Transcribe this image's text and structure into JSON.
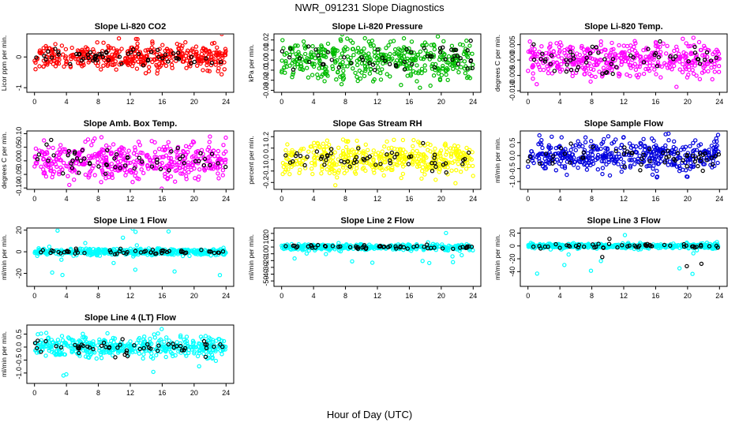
{
  "figure": {
    "title": "NWR_091231  Slope Diagnostics",
    "xlabel": "Hour of Day (UTC)"
  },
  "chart_data": [
    {
      "type": "scatter",
      "title": "Slope Li-820 CO2",
      "ylabel": "Licor ppm per min.",
      "xlim": [
        0,
        24
      ],
      "xticks": [
        0,
        4,
        8,
        12,
        16,
        20,
        24
      ],
      "ylim": [
        -1.15,
        0.75
      ],
      "yticks": [
        -1,
        0
      ],
      "ytick_labels": [
        "-1",
        "0"
      ],
      "series": [
        {
          "name": "",
          "color": "#ff0000",
          "spread": 0.2,
          "outlier_spread": 0.55,
          "count": 430
        },
        {
          "name": "",
          "color": "#000000",
          "spread": 0.15,
          "outlier_spread": 0.2,
          "count": 55
        }
      ]
    },
    {
      "type": "scatter",
      "title": "Slope Li-820 Pressure",
      "ylabel": "kPa per min.",
      "xlim": [
        0,
        24
      ],
      "xticks": [
        0,
        4,
        8,
        12,
        16,
        20,
        24
      ],
      "ylim": [
        -0.032,
        0.026
      ],
      "yticks": [
        -0.03,
        -0.02,
        -0.01,
        0,
        0.01,
        0.02
      ],
      "ytick_labels": [
        "-0.03",
        "-0.02",
        "-0.01",
        "0.00",
        "0.01",
        "0.02"
      ],
      "series": [
        {
          "name": "",
          "color": "#00bb00",
          "spread": 0.01,
          "outlier_spread": 0.02,
          "count": 430
        },
        {
          "name": "",
          "color": "#000000",
          "spread": 0.008,
          "outlier_spread": 0.01,
          "count": 55
        }
      ]
    },
    {
      "type": "scatter",
      "title": "Slope Li-820 Temp.",
      "ylabel": "degrees C per min.",
      "xlim": [
        0,
        24
      ],
      "xticks": [
        0,
        4,
        8,
        12,
        16,
        20,
        24
      ],
      "ylim": [
        -0.0105,
        0.0085
      ],
      "yticks": [
        -0.01,
        -0.005,
        0,
        0.005
      ],
      "ytick_labels": [
        "-0.010",
        "-0.005",
        "0.000",
        "0.005"
      ],
      "series": [
        {
          "name": "",
          "color": "#ff00ff",
          "spread": 0.003,
          "outlier_spread": 0.007,
          "count": 430
        },
        {
          "name": "",
          "color": "#000000",
          "spread": 0.0025,
          "outlier_spread": 0.004,
          "count": 55
        }
      ]
    },
    {
      "type": "scatter",
      "title": "Slope Amb. Box Temp.",
      "ylabel": "degrees C per min.",
      "xlim": [
        0,
        24
      ],
      "xticks": [
        0,
        4,
        8,
        12,
        16,
        20,
        24
      ],
      "ylim": [
        -0.105,
        0.11
      ],
      "yticks": [
        -0.1,
        -0.05,
        0,
        0.05,
        0.1
      ],
      "ytick_labels": [
        "-0.10",
        "-0.05",
        "0.00",
        "0.05",
        "0.10"
      ],
      "series": [
        {
          "name": "",
          "color": "#ff00ff",
          "spread": 0.035,
          "outlier_spread": 0.08,
          "count": 430
        },
        {
          "name": "",
          "color": "#000000",
          "spread": 0.03,
          "outlier_spread": 0.04,
          "count": 55
        }
      ]
    },
    {
      "type": "scatter",
      "title": "Slope Gas Stream RH",
      "ylabel": "percent per min.",
      "xlim": [
        0,
        24
      ],
      "xticks": [
        0,
        4,
        8,
        12,
        16,
        20,
        24
      ],
      "ylim": [
        -0.26,
        0.25
      ],
      "yticks": [
        -0.2,
        -0.1,
        0,
        0.1,
        0.2
      ],
      "ytick_labels": [
        "-0.2",
        "-0.1",
        "0.0",
        "0.1",
        "0.2"
      ],
      "series": [
        {
          "name": "",
          "color": "#ffff00",
          "spread": 0.07,
          "outlier_spread": 0.18,
          "count": 430
        },
        {
          "name": "",
          "color": "#000000",
          "spread": 0.05,
          "outlier_spread": 0.09,
          "count": 55
        }
      ]
    },
    {
      "type": "scatter",
      "title": "Slope Sample Flow",
      "ylabel": "ml/min per min.",
      "xlim": [
        0,
        24
      ],
      "xticks": [
        0,
        4,
        8,
        12,
        16,
        20,
        24
      ],
      "ylim": [
        -1.3,
        0.95
      ],
      "yticks": [
        -1,
        -0.5,
        0,
        0.5
      ],
      "ytick_labels": [
        "-1.0",
        "-0.5",
        "0.0",
        "0.5"
      ],
      "series": [
        {
          "name": "",
          "color": "#0000dd",
          "spread": 0.3,
          "outlier_spread": 0.85,
          "count": 430
        },
        {
          "name": "",
          "color": "#000000",
          "spread": 0.25,
          "outlier_spread": 0.3,
          "count": 55
        }
      ]
    },
    {
      "type": "scatter",
      "title": "Slope Line 1 Flow",
      "ylabel": "ml/min per min.",
      "xlim": [
        0,
        24
      ],
      "xticks": [
        0,
        4,
        8,
        12,
        16,
        20,
        24
      ],
      "ylim": [
        -32,
        22
      ],
      "yticks": [
        -20,
        0,
        20
      ],
      "ytick_labels": [
        "-20",
        "0",
        "20"
      ],
      "series": [
        {
          "name": "",
          "color": "#00ffff",
          "spread": 1.5,
          "outlier_spread": 22,
          "count": 430
        },
        {
          "name": "",
          "color": "#000000",
          "spread": 1.2,
          "outlier_spread": 3,
          "count": 55
        }
      ]
    },
    {
      "type": "scatter",
      "title": "Slope Line 2 Flow",
      "ylabel": "ml/min per min.",
      "xlim": [
        0,
        24
      ],
      "xticks": [
        0,
        4,
        8,
        12,
        16,
        20,
        24
      ],
      "ylim": [
        -58,
        28
      ],
      "yticks": [
        -50,
        -40,
        -30,
        -20,
        -10,
        0,
        10,
        20
      ],
      "ytick_labels": [
        "-50",
        "-40",
        "-30",
        "-20",
        "-10",
        "0",
        "10",
        "20"
      ],
      "series": [
        {
          "name": "",
          "color": "#00ffff",
          "spread": 2,
          "outlier_spread": 25,
          "count": 430
        },
        {
          "name": "",
          "color": "#000000",
          "spread": 1.5,
          "outlier_spread": 50,
          "count": 55
        }
      ]
    },
    {
      "type": "scatter",
      "title": "Slope Line 3 Flow",
      "ylabel": "ml/min per min.",
      "xlim": [
        0,
        24
      ],
      "xticks": [
        0,
        4,
        8,
        12,
        16,
        20,
        24
      ],
      "ylim": [
        -63,
        28
      ],
      "yticks": [
        -40,
        -20,
        0,
        20
      ],
      "ytick_labels": [
        "-40",
        "-20",
        "0",
        "20"
      ],
      "series": [
        {
          "name": "",
          "color": "#00ffff",
          "spread": 2,
          "outlier_spread": 50,
          "count": 430
        },
        {
          "name": "",
          "color": "#000000",
          "spread": 1.5,
          "outlier_spread": 45,
          "count": 55
        }
      ]
    },
    {
      "type": "scatter",
      "title": "Slope Line 4 (LT) Flow",
      "ylabel": "ml/min per min.",
      "xlim": [
        0,
        24
      ],
      "xticks": [
        0,
        4,
        8,
        12,
        16,
        20,
        24
      ],
      "ylim": [
        -1.4,
        0.85
      ],
      "yticks": [
        -1,
        -0.5,
        0,
        0.5
      ],
      "ytick_labels": [
        "-1.0",
        "-0.5",
        "0.0",
        "0.5"
      ],
      "series": [
        {
          "name": "",
          "color": "#00ffff",
          "spread": 0.2,
          "outlier_spread": 1.2,
          "count": 430
        },
        {
          "name": "",
          "color": "#000000",
          "spread": 0.15,
          "outlier_spread": 0.25,
          "count": 55
        }
      ]
    }
  ]
}
